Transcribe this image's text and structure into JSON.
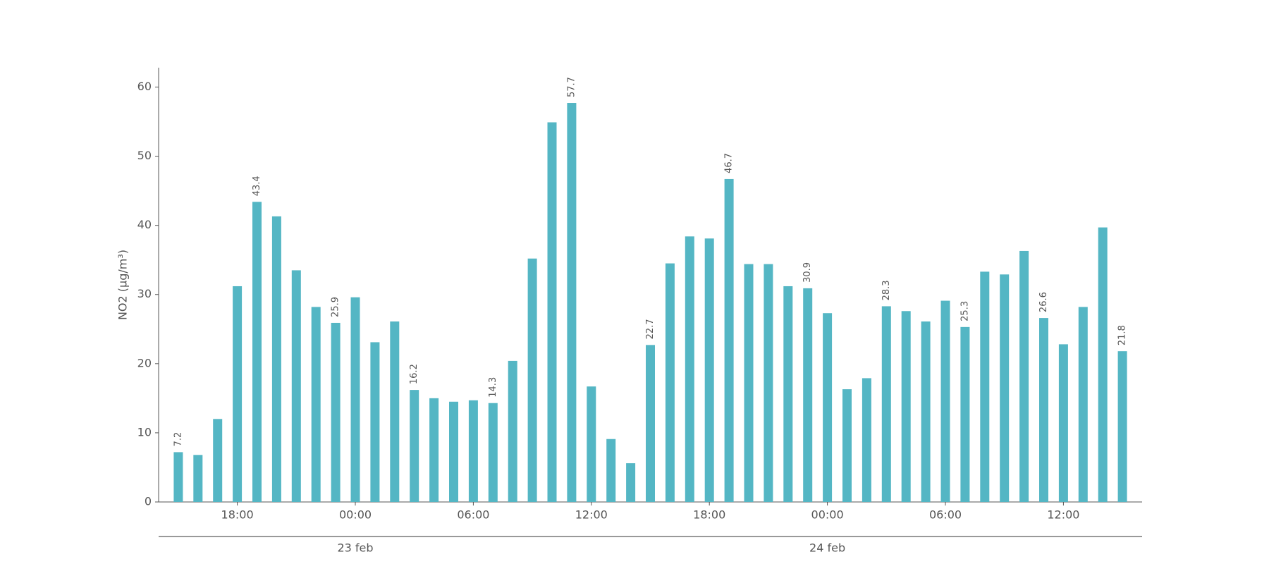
{
  "chart_data": {
    "type": "bar",
    "y_label": "NO2 (μg/m³)",
    "categories": [
      null,
      null,
      null,
      "18:00",
      null,
      null,
      null,
      null,
      null,
      "00:00",
      null,
      null,
      null,
      null,
      null,
      "06:00",
      null,
      null,
      null,
      null,
      null,
      "12:00",
      null,
      null,
      null,
      null,
      null,
      "18:00",
      null,
      null,
      null,
      null,
      null,
      "00:00",
      null,
      null,
      null,
      null,
      null,
      "06:00",
      null,
      null,
      null,
      null,
      null,
      "12:00",
      null,
      null,
      null
    ],
    "dates": [
      null,
      null,
      null,
      null,
      null,
      null,
      null,
      null,
      null,
      "23 feb",
      null,
      null,
      null,
      null,
      null,
      null,
      null,
      null,
      null,
      null,
      null,
      null,
      null,
      null,
      null,
      null,
      null,
      null,
      null,
      null,
      null,
      null,
      null,
      "24 feb",
      null,
      null,
      null,
      null,
      null,
      null,
      null,
      null,
      null,
      null,
      null,
      null,
      null,
      null,
      null
    ],
    "values": [
      7.2,
      6.8,
      12,
      31.2,
      43.4,
      41.3,
      33.5,
      28.2,
      25.9,
      29.6,
      23.1,
      26.1,
      16.2,
      15.0,
      14.5,
      14.7,
      14.3,
      20.4,
      35.2,
      54.9,
      57.7,
      16.7,
      9.1,
      5.6,
      22.7,
      34.5,
      38.4,
      38.1,
      46.7,
      34.4,
      34.4,
      31.2,
      30.9,
      27.3,
      16.3,
      17.9,
      28.3,
      27.6,
      26.1,
      29.1,
      25.3,
      33.3,
      32.9,
      36.3,
      26.6,
      22.8,
      28.2,
      39.7,
      21.8
    ],
    "value_labels": [
      "7.2",
      null,
      null,
      null,
      "43.4",
      null,
      null,
      null,
      "25.9",
      null,
      null,
      null,
      "16.2",
      null,
      null,
      null,
      "14.3",
      null,
      null,
      null,
      "57.7",
      null,
      null,
      null,
      "22.7",
      null,
      null,
      null,
      "46.7",
      null,
      null,
      null,
      "30.9",
      null,
      null,
      null,
      "28.3",
      null,
      null,
      null,
      "25.3",
      null,
      null,
      null,
      "26.6",
      null,
      null,
      null,
      "21.8"
    ],
    "color": "#54b6c4",
    "ylim": [
      0,
      62.8
    ],
    "yticks": [
      0,
      10,
      20,
      30,
      40,
      50,
      60
    ],
    "grid": false
  }
}
